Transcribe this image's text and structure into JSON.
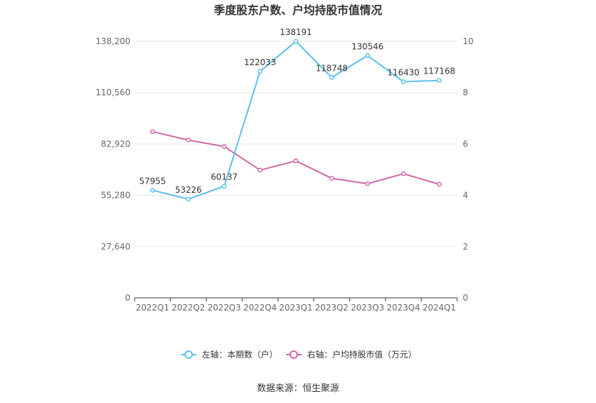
{
  "chart_data": {
    "type": "line",
    "title": "季度股东户数、户均持股市值情况",
    "categories": [
      "2022Q1",
      "2022Q2",
      "2022Q3",
      "2022Q4",
      "2023Q1",
      "2023Q2",
      "2023Q3",
      "2023Q4",
      "2024Q1"
    ],
    "series": [
      {
        "name": "左轴：本期数（户）",
        "axis": "left",
        "color": "#5bc0eb",
        "values": [
          57955,
          53226,
          60137,
          122033,
          138191,
          118748,
          130546,
          116430,
          117168
        ],
        "labels": [
          "57955",
          "53226",
          "60137",
          "122033",
          "138191",
          "118748",
          "130546",
          "116430",
          "117168"
        ]
      },
      {
        "name": "右轴：户均持股市值（万元）",
        "axis": "right",
        "color": "#d066a8",
        "values": [
          6.48,
          6.15,
          5.9,
          4.98,
          5.34,
          4.66,
          4.45,
          4.84,
          4.43
        ]
      }
    ],
    "left_axis": {
      "min": 0,
      "max": 138200,
      "ticks": [
        0,
        27640,
        55280,
        82920,
        110560,
        138200
      ],
      "tick_labels": [
        "0",
        "27,640",
        "55,280",
        "82,920",
        "110,560",
        "138,200"
      ]
    },
    "right_axis": {
      "min": 0,
      "max": 10,
      "ticks": [
        0,
        2,
        4,
        6,
        8,
        10
      ],
      "tick_labels": [
        "0",
        "2",
        "4",
        "6",
        "8",
        "10"
      ]
    },
    "grid": true,
    "legend_position": "bottom"
  },
  "source": "数据来源：恒生聚源"
}
